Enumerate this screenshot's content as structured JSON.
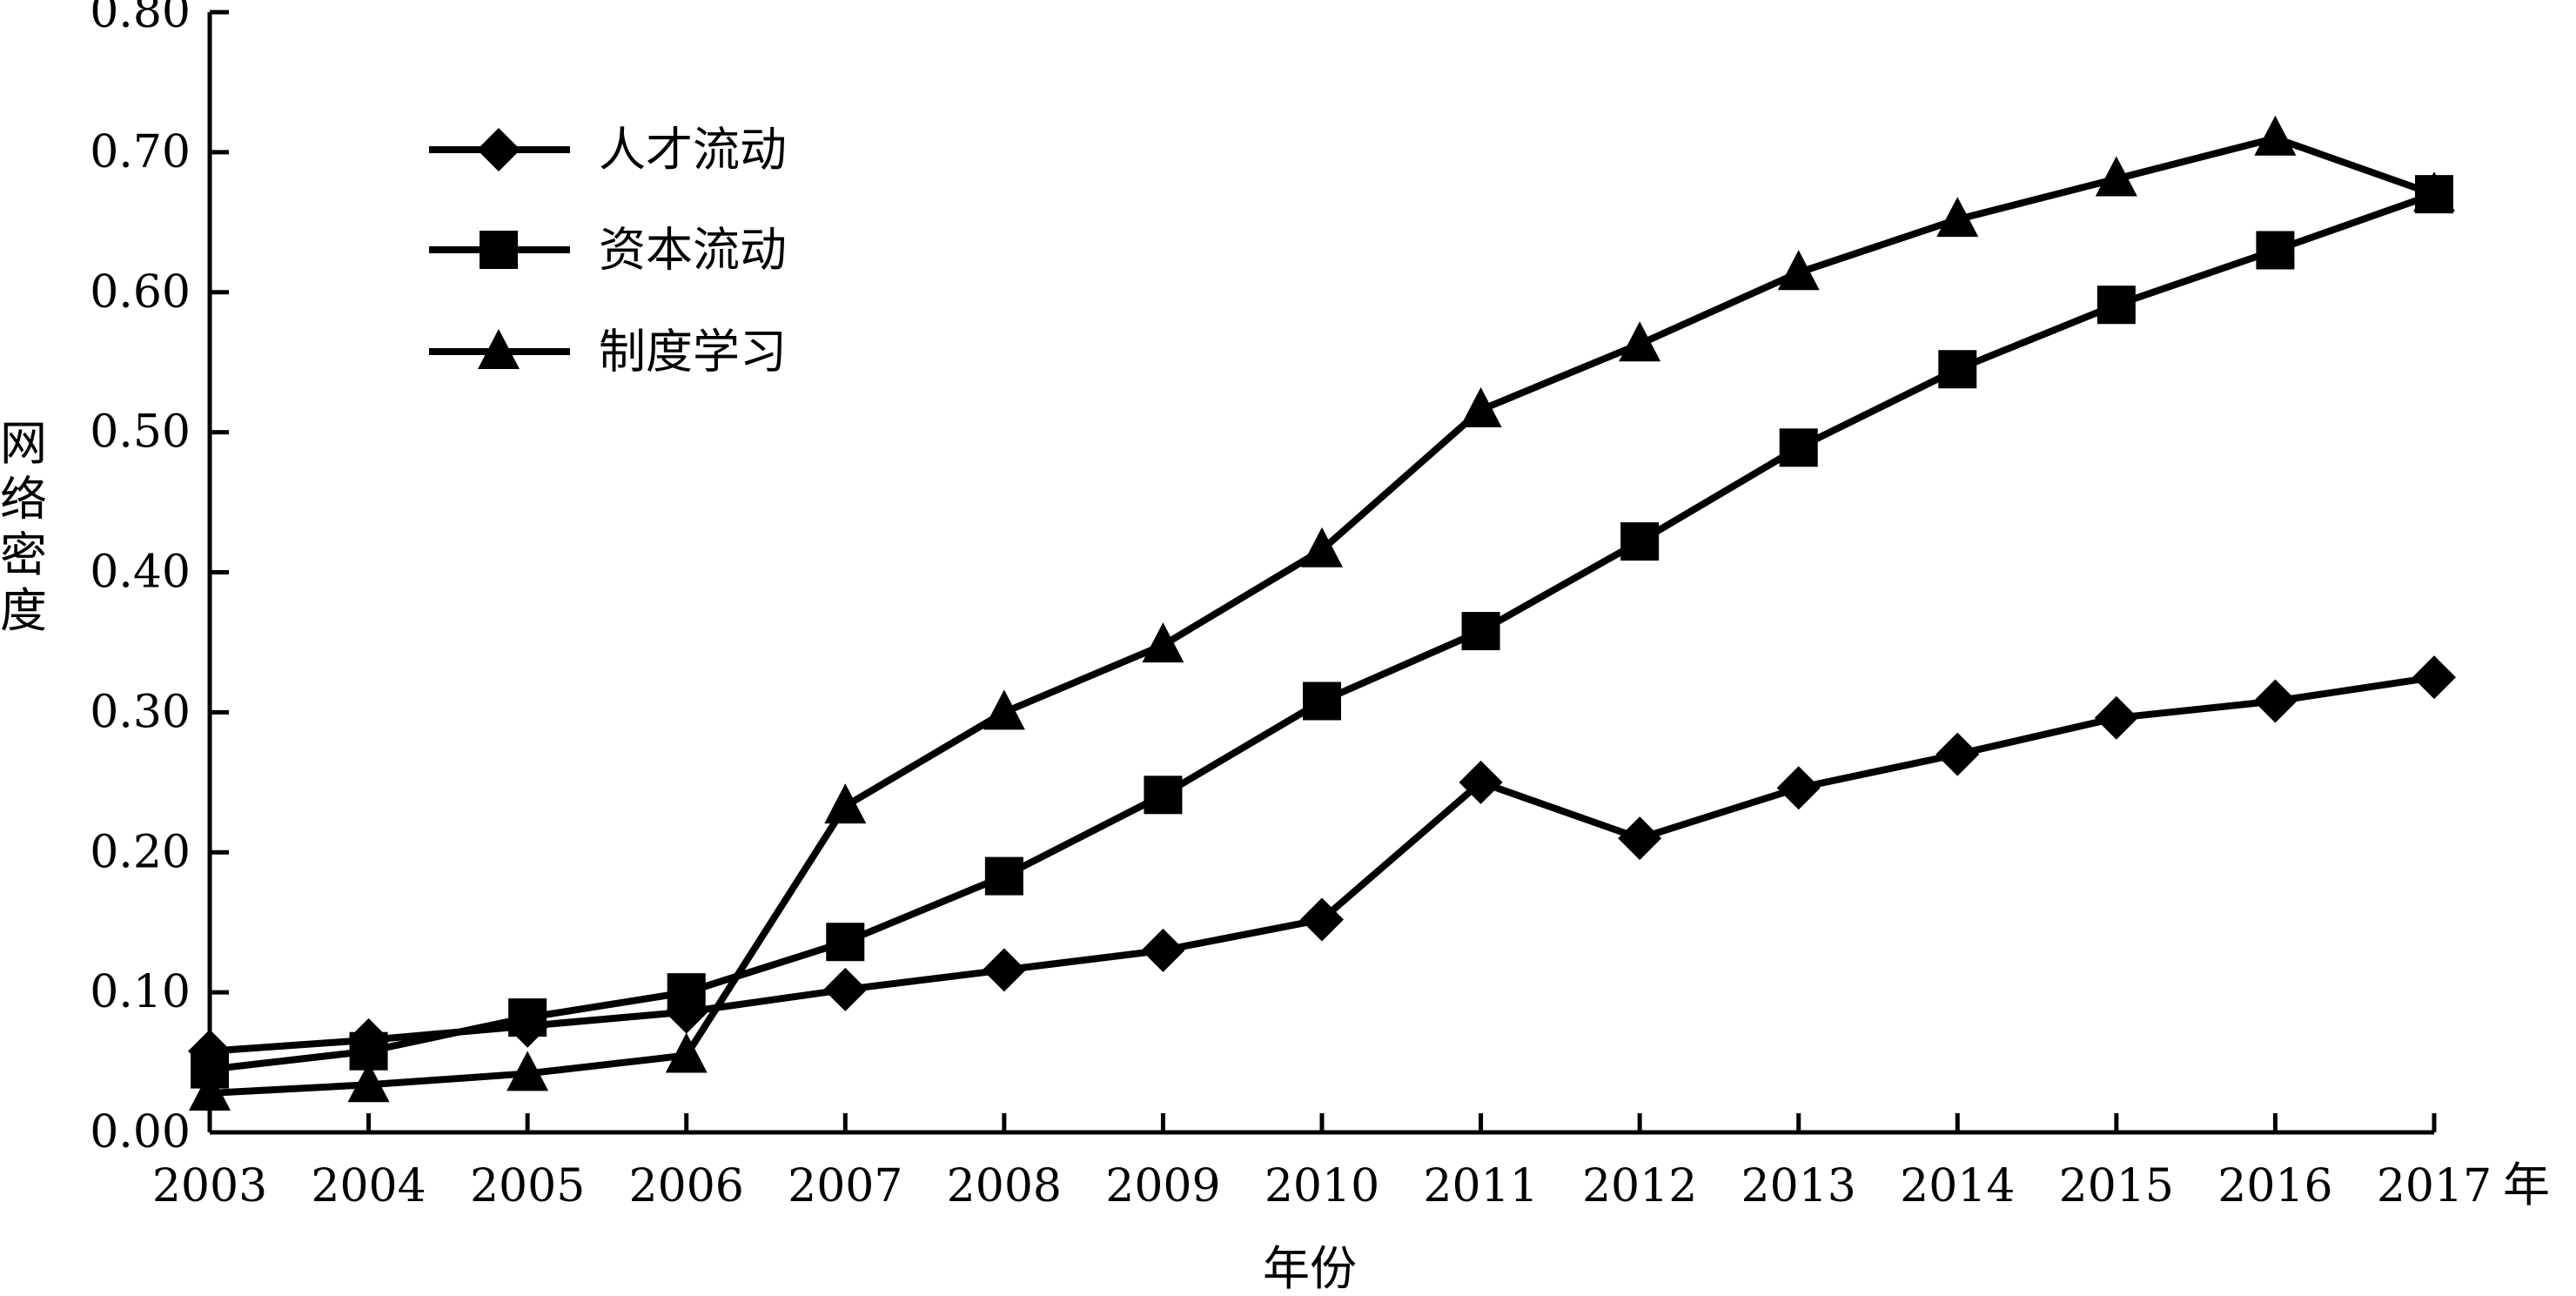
{
  "chart_data": {
    "type": "line",
    "x": [
      "2003",
      "2004",
      "2005",
      "2006",
      "2007",
      "2008",
      "2009",
      "2010",
      "2011",
      "2012",
      "2013",
      "2014",
      "2015",
      "2016",
      "2017"
    ],
    "series": [
      {
        "name": "人才流动",
        "marker": "diamond",
        "values": [
          0.058,
          0.066,
          0.076,
          0.086,
          0.102,
          0.116,
          0.13,
          0.152,
          0.25,
          0.21,
          0.246,
          0.27,
          0.296,
          0.308,
          0.325
        ]
      },
      {
        "name": "资本流动",
        "marker": "square",
        "values": [
          0.045,
          0.058,
          0.082,
          0.1,
          0.136,
          0.183,
          0.241,
          0.308,
          0.358,
          0.422,
          0.489,
          0.545,
          0.591,
          0.63,
          0.67
        ]
      },
      {
        "name": "制度学习",
        "marker": "triangle",
        "values": [
          0.028,
          0.034,
          0.042,
          0.055,
          0.233,
          0.3,
          0.348,
          0.416,
          0.516,
          0.563,
          0.614,
          0.652,
          0.681,
          0.71,
          0.67
        ]
      }
    ],
    "ylabel": "网络密度",
    "xlabel": "年份",
    "x_unit": "年",
    "ylim": [
      0,
      0.8
    ],
    "yticks": [
      "0.00",
      "0.10",
      "0.20",
      "0.30",
      "0.40",
      "0.50",
      "0.60",
      "0.70",
      "0.80"
    ],
    "grid": false,
    "legend_position": "top-left",
    "line_color": "#000000"
  }
}
